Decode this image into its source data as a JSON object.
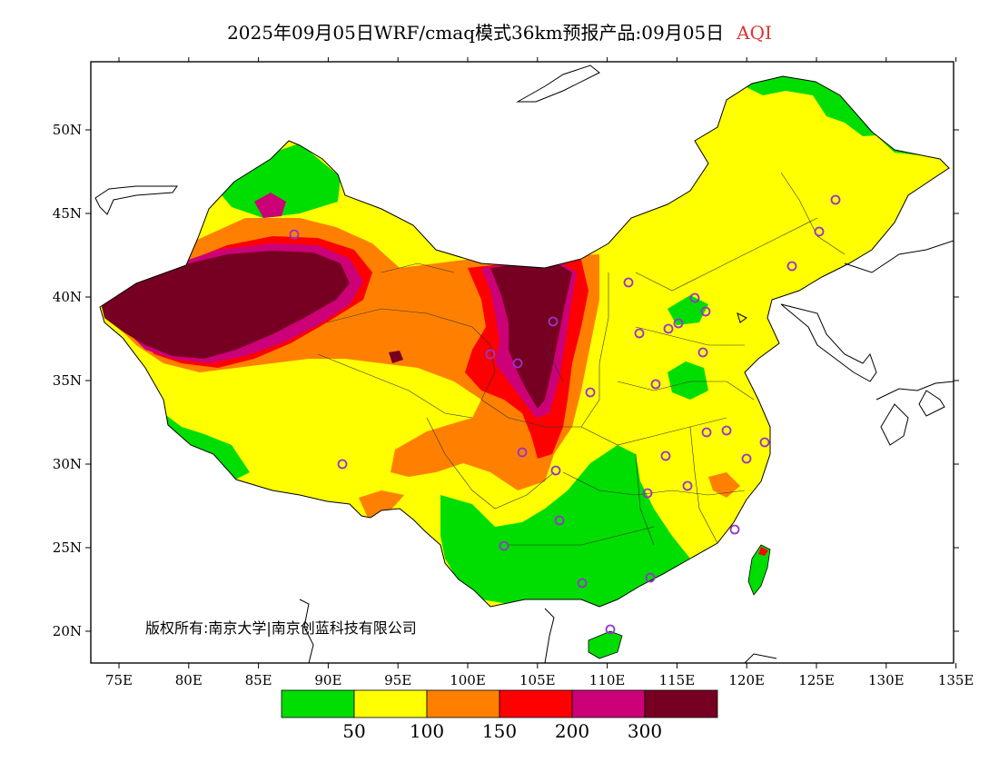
{
  "title": {
    "text": "2025年09月05日WRF/cmaq模式36km预报产品:09月05日",
    "variable": "AQI"
  },
  "axes": {
    "x_ticks": [
      "75E",
      "80E",
      "85E",
      "90E",
      "95E",
      "100E",
      "105E",
      "110E",
      "115E",
      "120E",
      "125E",
      "130E",
      "135E"
    ],
    "y_ticks": [
      "50N",
      "45N",
      "40N",
      "35N",
      "30N",
      "25N",
      "20N"
    ]
  },
  "colorbar": {
    "colors": [
      "#00dd00",
      "#ffff00",
      "#ff8000",
      "#ff0000",
      "#cc0077",
      "#770022"
    ],
    "labels": [
      "50",
      "100",
      "150",
      "200",
      "300"
    ]
  },
  "copyright": "版权所有:南京大学|南京创蓝科技有限公司",
  "colors": {
    "good": "#00dd00",
    "moderate": "#ffff00",
    "usg": "#ff8000",
    "unhealthy": "#ff0000",
    "very_unhealthy": "#cc0077",
    "hazardous": "#770022",
    "station_marker": "#9933cc"
  }
}
